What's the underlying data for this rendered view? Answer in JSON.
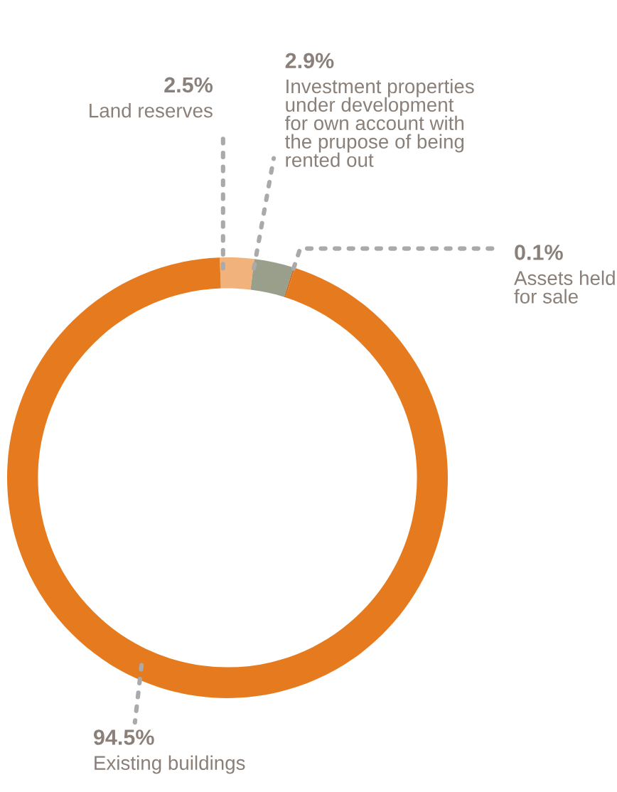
{
  "chart_data": {
    "type": "donut",
    "categories": [
      "Land reserves",
      "Investment properties\nunder development\nfor own account with\nthe prupose of being\nrented out",
      "Assets held\nfor sale",
      "Existing buildings"
    ],
    "values": [
      2.5,
      2.9,
      0.1,
      94.5
    ],
    "value_labels": [
      "2.5%",
      "2.9%",
      "0.1%",
      "94.5%"
    ],
    "colors": [
      "#f2b27c",
      "#9a9f8c",
      "#c9661a",
      "#e57b1e"
    ],
    "legend": false
  }
}
